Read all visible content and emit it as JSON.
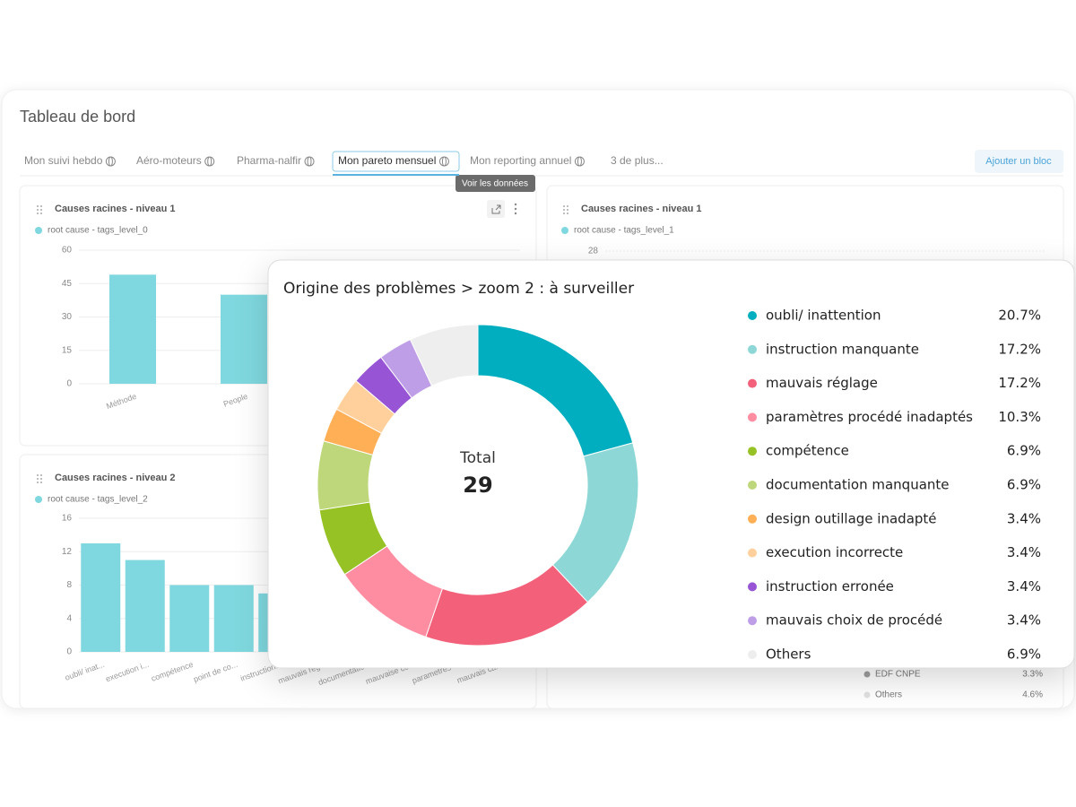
{
  "header": {
    "title": "Tableau de bord"
  },
  "tabs": [
    {
      "label": "Mon suivi hebdo",
      "shared": true,
      "active": false
    },
    {
      "label": "Aéro-moteurs",
      "shared": true,
      "active": false
    },
    {
      "label": "Pharma-nalfir",
      "shared": true,
      "active": false
    },
    {
      "label": "Mon pareto mensuel",
      "shared": true,
      "active": true
    },
    {
      "label": "Mon reporting annuel",
      "shared": true,
      "active": false
    },
    {
      "label": "3 de plus...",
      "shared": false,
      "active": false
    }
  ],
  "add_button": "Ajouter un bloc",
  "tooltip": "Voir les données",
  "chart_data": [
    {
      "type": "bar",
      "title": "Causes racines - niveau 1",
      "legend": "root cause - tags_level_0",
      "color": "#7fd8df",
      "categories": [
        "Méthode",
        "People"
      ],
      "values": [
        49,
        40
      ],
      "ylim": [
        0,
        60
      ],
      "yticks": [
        0,
        15,
        30,
        45,
        60
      ],
      "grid": true
    },
    {
      "type": "bar",
      "title": "Causes racines - niveau 2",
      "legend": "root cause - tags_level_2",
      "color": "#7fd8df",
      "categories": [
        "oubli/ inat...",
        "execution i...",
        "compétence",
        "point de co...",
        "instruction...",
        "mauvais rég...",
        "documentatio...",
        "mauvaise co...",
        "parametres ...",
        "mauvais cal..."
      ],
      "values": [
        13,
        11,
        8,
        8,
        7,
        null,
        null,
        null,
        null,
        null
      ],
      "ylim": [
        0,
        16
      ],
      "yticks": [
        0,
        4,
        8,
        12,
        16
      ],
      "grid": true
    },
    {
      "type": "bar",
      "title": "Causes racines - niveau 1",
      "legend": "root cause - tags_level_1",
      "color": "#7fd8df",
      "yticks": [
        28
      ],
      "grid": true
    },
    {
      "type": "legend",
      "categories": [
        "EDF CNPE",
        "Others"
      ],
      "values": [
        3.3,
        4.6
      ],
      "value_labels": [
        "3.3%",
        "4.6%"
      ],
      "colors": [
        "#9e9e9e",
        "#e0e0e0"
      ]
    },
    {
      "type": "donut",
      "title": "Origine des problèmes > zoom 2 : à surveiller",
      "total_label": "Total",
      "total": 29,
      "categories": [
        "oubli/ inattention",
        "instruction manquante",
        "mauvais réglage",
        "paramètres procédé inadaptés",
        "compétence",
        "documentation manquante",
        "design outillage inadapté",
        "execution incorrecte",
        "instruction erronée",
        "mauvais choix de procédé",
        "Others"
      ],
      "values": [
        20.7,
        17.2,
        17.2,
        10.3,
        6.9,
        6.9,
        3.4,
        3.4,
        3.4,
        3.4,
        6.9
      ],
      "value_labels": [
        "20.7%",
        "17.2%",
        "17.2%",
        "10.3%",
        "6.9%",
        "6.9%",
        "3.4%",
        "3.4%",
        "3.4%",
        "3.4%",
        "6.9%"
      ],
      "colors": [
        "#00aebf",
        "#8dd8d6",
        "#f2607a",
        "#ff8da1",
        "#96c225",
        "#bed77a",
        "#ffaf56",
        "#ffd09b",
        "#9755d6",
        "#bf9ee8",
        "#eeeeee"
      ]
    }
  ]
}
